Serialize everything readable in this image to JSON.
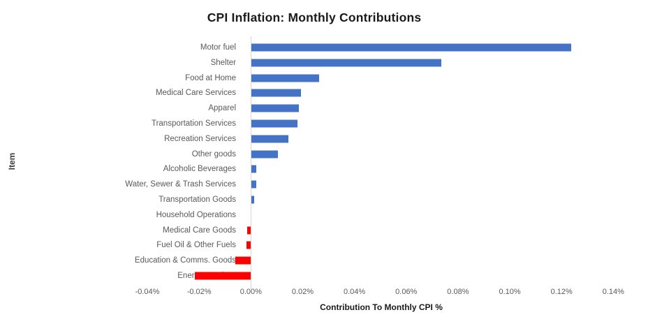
{
  "chart_data": {
    "type": "bar",
    "orientation": "horizontal",
    "title": "CPI Inflation: Monthly Contributions",
    "xlabel": "Contribution To Monthly CPI %",
    "ylabel": "Item",
    "grid": false,
    "legend": false,
    "xlim": [
      -0.04,
      0.14
    ],
    "xtick_values": [
      -0.04,
      -0.02,
      0.0,
      0.02,
      0.04,
      0.06,
      0.08,
      0.1,
      0.12,
      0.14
    ],
    "xtick_labels": [
      "-0.04%",
      "-0.02%",
      "0.00%",
      "0.02%",
      "0.04%",
      "0.06%",
      "0.08%",
      "0.10%",
      "0.12%",
      "0.14%"
    ],
    "categories": [
      "Motor fuel",
      "Shelter",
      "Food at Home",
      "Medical Care Services",
      "Apparel",
      "Transportation Services",
      "Recreation Services",
      "Other goods",
      "Alcoholic Beverages",
      "Water, Sewer & Trash Services",
      "Transportation Goods",
      "Household Operations",
      "Medical Care Goods",
      "Fuel Oil & Other Fuels",
      "Education & Comms. Goods",
      "Energy Services"
    ],
    "values": [
      0.1235,
      0.0733,
      0.026,
      0.0191,
      0.0183,
      0.0177,
      0.0141,
      0.0101,
      0.0018,
      0.0019,
      0.0009,
      0.0,
      -0.0013,
      -0.0016,
      -0.0059,
      -0.0216
    ],
    "positive_color": "#4472C4",
    "negative_color": "#FF0000",
    "text_color": "#595959",
    "axis_line_color": "#D6D6D6"
  }
}
